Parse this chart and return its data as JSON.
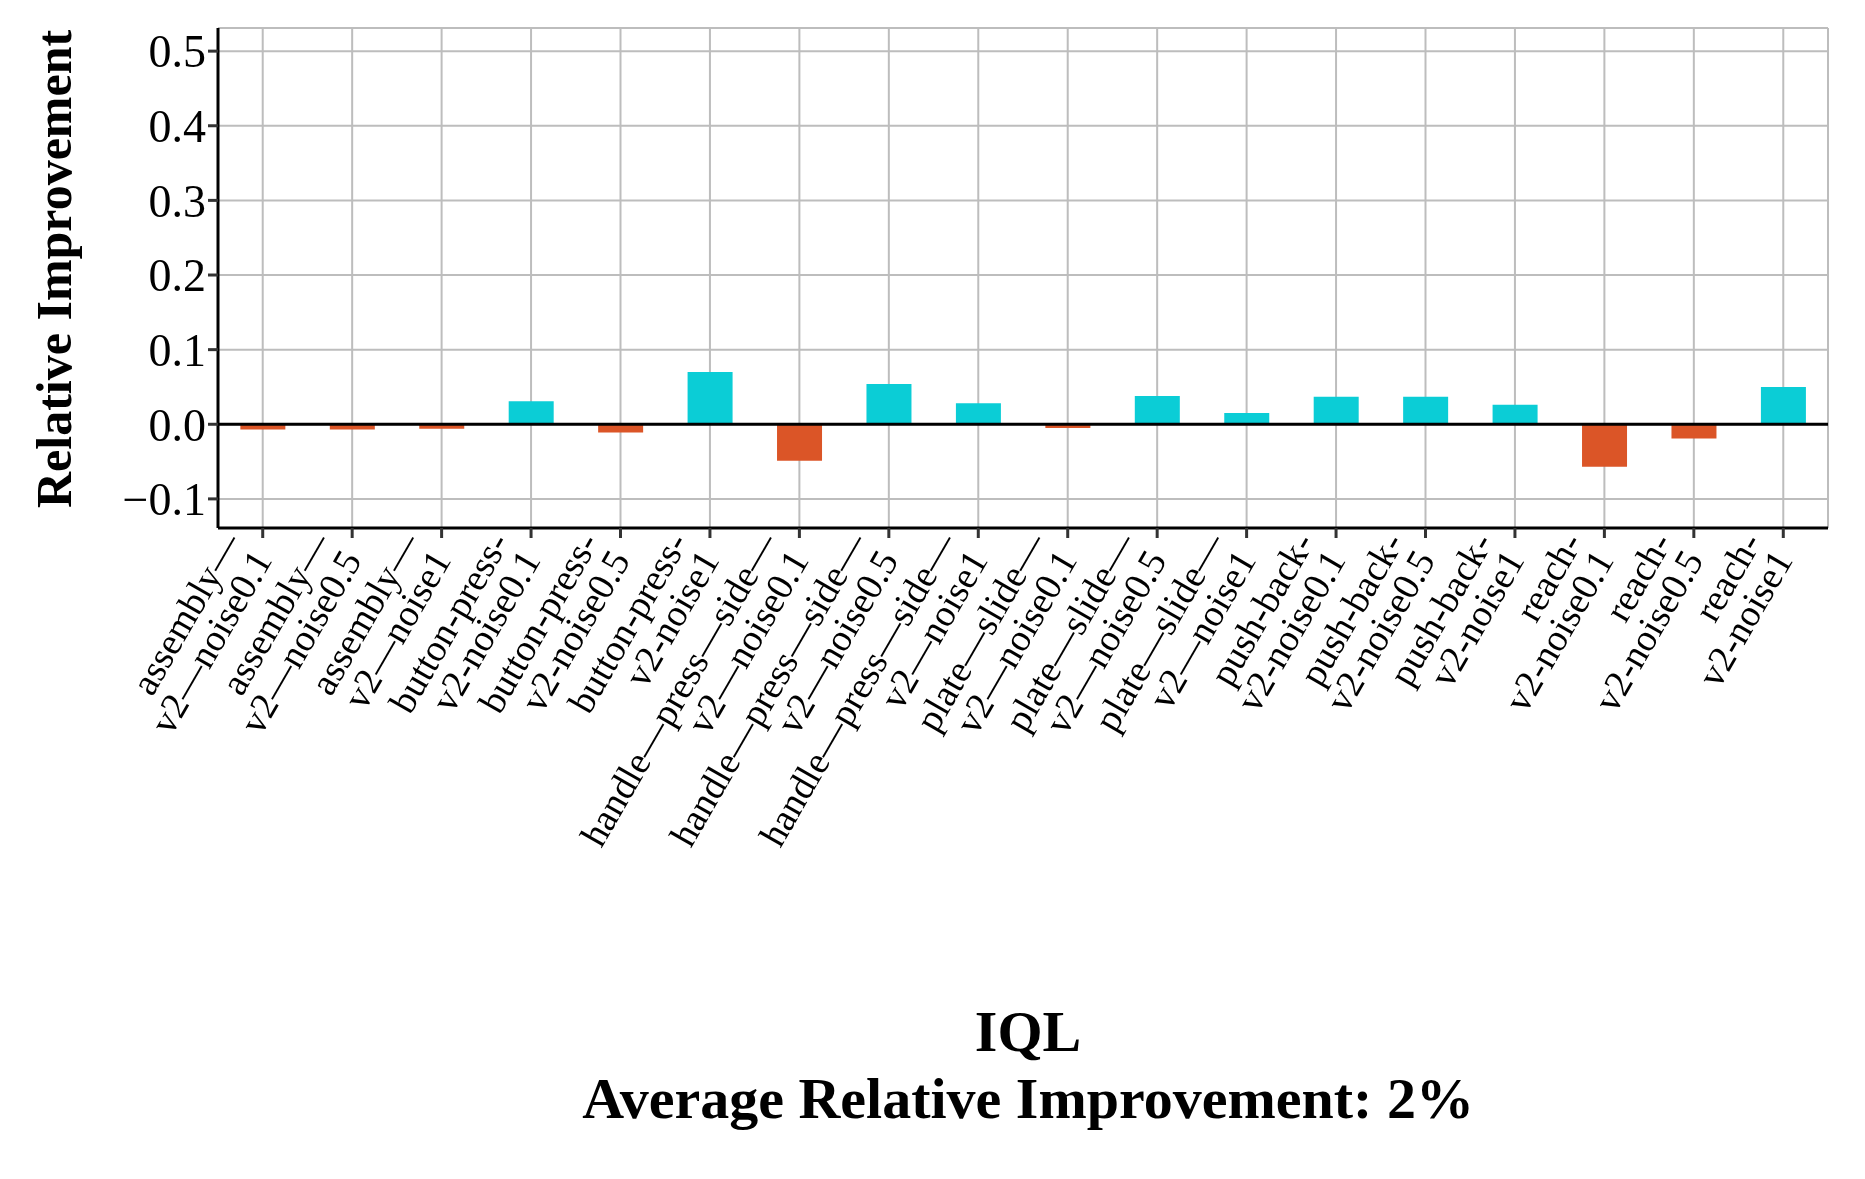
{
  "chart_data": {
    "type": "bar",
    "ylabel": "Relative Improvement",
    "xlabel": "IQL",
    "annotations": [
      "Average Relative Improvement: 2%"
    ],
    "categories": [
      "assembly—\nv2—noise0.1",
      "assembly—\nv2—noise0.5",
      "assembly—\nv2—noise1",
      "button-press-\nv2-noise0.1",
      "button-press-\nv2-noise0.5",
      "button-press-\nv2-noise1",
      "handle—press—side—\nv2—noise0.1",
      "handle—press—side—\nv2—noise0.5",
      "handle—press—side—\nv2—noise1",
      "plate—slide—\nv2—noise0.1",
      "plate—slide—\nv2—noise0.5",
      "plate—slide—\nv2—noise1",
      "push-back-\nv2-noise0.1",
      "push-back-\nv2-noise0.5",
      "push-back-\nv2-noise1",
      "reach-\nv2-noise0.1",
      "reach-\nv2-noise0.5",
      "reach-\nv2-noise1"
    ],
    "values": [
      -0.007,
      -0.007,
      -0.006,
      0.031,
      -0.011,
      0.07,
      -0.049,
      0.054,
      0.028,
      -0.005,
      0.038,
      0.015,
      0.037,
      0.037,
      0.026,
      -0.057,
      -0.019,
      0.05
    ],
    "colors": [
      "#db5527",
      "#db5527",
      "#db5527",
      "#0bcdd6",
      "#db5527",
      "#0bcdd6",
      "#db5527",
      "#0bcdd6",
      "#0bcdd6",
      "#db5527",
      "#0bcdd6",
      "#0bcdd6",
      "#0bcdd6",
      "#0bcdd6",
      "#0bcdd6",
      "#db5527",
      "#db5527",
      "#0bcdd6"
    ],
    "ylim": [
      -0.139,
      0.531
    ],
    "yticks": [
      {
        "value": -0.1,
        "label": "−0.1"
      },
      {
        "value": 0,
        "label": "0.0"
      },
      {
        "value": 0.1,
        "label": "0.1"
      },
      {
        "value": 0.2,
        "label": "0.2"
      },
      {
        "value": 0.3,
        "label": "0.3"
      },
      {
        "value": 0.4,
        "label": "0.4"
      },
      {
        "value": 0.5,
        "label": "0.5"
      }
    ],
    "ref_lines": [
      {
        "axis": "y",
        "value": 0,
        "color": "#000000"
      }
    ],
    "grid": true
  }
}
